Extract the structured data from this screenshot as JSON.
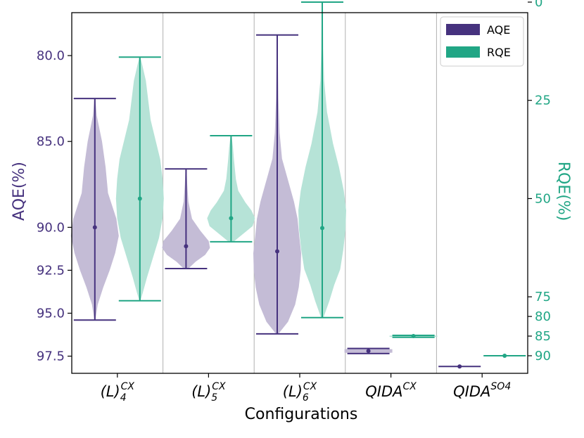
{
  "chart_data": {
    "type": "violin",
    "xlabel": "Configurations",
    "ylabel_left": "AQE(%)",
    "ylabel_right": "RQE(%)",
    "categories": [
      {
        "base": "(L)",
        "sub": "4",
        "sup": "CX"
      },
      {
        "base": "(L)",
        "sub": "5",
        "sup": "CX"
      },
      {
        "base": "(L)",
        "sub": "6",
        "sup": "CX"
      },
      {
        "base": "QIDA",
        "sub": "",
        "sup": "CX"
      },
      {
        "base": "QIDA",
        "sub": "",
        "sup": "SO4"
      }
    ],
    "left_axis": {
      "inverted": true,
      "range": [
        77.5,
        98.5
      ],
      "ticks": [
        80.0,
        85.0,
        90.0,
        92.5,
        95.0,
        97.5
      ],
      "tick_labels": [
        "80.0",
        "85.0",
        "90.0",
        "92.5",
        "95.0",
        "97.5"
      ]
    },
    "right_axis": {
      "inverted": true,
      "range": [
        0,
        90
      ],
      "ticks": [
        0,
        25,
        50,
        75,
        80,
        85,
        90
      ],
      "tick_labels": [
        "0",
        "25",
        "50",
        "75",
        "80",
        "85",
        "90"
      ]
    },
    "series": [
      {
        "name": "AQE",
        "axis": "left",
        "color": "#46327e",
        "fill": "#c4bcd6",
        "violins": [
          {
            "min": 82.5,
            "max": 95.4,
            "median": 90.0,
            "profile": [
              [
                82.5,
                0.02
              ],
              [
                83.5,
                0.08
              ],
              [
                85.0,
                0.3
              ],
              [
                86.5,
                0.45
              ],
              [
                88.0,
                0.55
              ],
              [
                89.5,
                0.9
              ],
              [
                90.5,
                1.0
              ],
              [
                91.5,
                0.85
              ],
              [
                92.5,
                0.62
              ],
              [
                93.5,
                0.35
              ],
              [
                94.5,
                0.12
              ],
              [
                95.4,
                0.02
              ]
            ]
          },
          {
            "min": 86.6,
            "max": 92.4,
            "median": 91.1,
            "profile": [
              [
                86.6,
                0.02
              ],
              [
                87.5,
                0.05
              ],
              [
                88.5,
                0.1
              ],
              [
                89.5,
                0.25
              ],
              [
                90.2,
                0.6
              ],
              [
                90.8,
                0.95
              ],
              [
                91.2,
                1.0
              ],
              [
                91.6,
                0.8
              ],
              [
                92.0,
                0.4
              ],
              [
                92.4,
                0.1
              ]
            ]
          },
          {
            "min": 78.8,
            "max": 96.2,
            "median": 91.4,
            "profile": [
              [
                78.8,
                0.01
              ],
              [
                80.5,
                0.03
              ],
              [
                82.5,
                0.05
              ],
              [
                84.5,
                0.1
              ],
              [
                86.0,
                0.2
              ],
              [
                87.5,
                0.5
              ],
              [
                88.5,
                0.7
              ],
              [
                89.5,
                0.85
              ],
              [
                90.5,
                0.92
              ],
              [
                91.5,
                1.0
              ],
              [
                92.5,
                0.98
              ],
              [
                93.5,
                0.9
              ],
              [
                94.5,
                0.75
              ],
              [
                95.5,
                0.45
              ],
              [
                96.2,
                0.05
              ]
            ]
          },
          {
            "min": 97.05,
            "max": 97.35,
            "median": 97.2,
            "profile": [
              [
                97.05,
                0.4
              ],
              [
                97.1,
                1.0
              ],
              [
                97.2,
                1.0
              ],
              [
                97.3,
                1.0
              ],
              [
                97.35,
                0.4
              ]
            ]
          },
          {
            "min": 98.1,
            "max": 98.1,
            "median": 98.1,
            "profile": []
          }
        ]
      },
      {
        "name": "RQE",
        "axis": "right",
        "color": "#21a685",
        "fill": "#b6e3d7",
        "violins": [
          {
            "min": 14,
            "max": 76,
            "median": 50,
            "profile": [
              [
                14,
                0.02
              ],
              [
                16,
                0.1
              ],
              [
                20,
                0.25
              ],
              [
                25,
                0.35
              ],
              [
                30,
                0.45
              ],
              [
                35,
                0.65
              ],
              [
                40,
                0.85
              ],
              [
                45,
                0.95
              ],
              [
                50,
                1.0
              ],
              [
                55,
                0.95
              ],
              [
                60,
                0.8
              ],
              [
                65,
                0.55
              ],
              [
                70,
                0.3
              ],
              [
                74,
                0.12
              ],
              [
                76,
                0.02
              ]
            ]
          },
          {
            "min": 34,
            "max": 61,
            "median": 55,
            "profile": [
              [
                34,
                0.02
              ],
              [
                37,
                0.08
              ],
              [
                40,
                0.12
              ],
              [
                45,
                0.2
              ],
              [
                48,
                0.3
              ],
              [
                51,
                0.6
              ],
              [
                53,
                0.85
              ],
              [
                55,
                1.0
              ],
              [
                57,
                0.9
              ],
              [
                59,
                0.5
              ],
              [
                61,
                0.1
              ]
            ]
          },
          {
            "min": 0,
            "max": 80.3,
            "median": 57.5,
            "profile": [
              [
                0,
                0.01
              ],
              [
                5,
                0.03
              ],
              [
                12,
                0.04
              ],
              [
                20,
                0.08
              ],
              [
                28,
                0.2
              ],
              [
                36,
                0.45
              ],
              [
                42,
                0.7
              ],
              [
                48,
                0.9
              ],
              [
                53,
                1.0
              ],
              [
                58,
                0.97
              ],
              [
                63,
                0.88
              ],
              [
                68,
                0.75
              ],
              [
                72,
                0.5
              ],
              [
                76,
                0.3
              ],
              [
                80.3,
                0.05
              ]
            ]
          },
          {
            "min": 84.8,
            "max": 85.3,
            "median": 85.0,
            "profile": [
              [
                84.8,
                0.4
              ],
              [
                84.9,
                1.0
              ],
              [
                85.0,
                1.0
              ],
              [
                85.2,
                1.0
              ],
              [
                85.3,
                0.4
              ]
            ]
          },
          {
            "min": 90,
            "max": 90,
            "median": 90,
            "profile": []
          }
        ]
      }
    ],
    "legend": {
      "position": "top-right",
      "entries": [
        "AQE",
        "RQE"
      ]
    }
  }
}
